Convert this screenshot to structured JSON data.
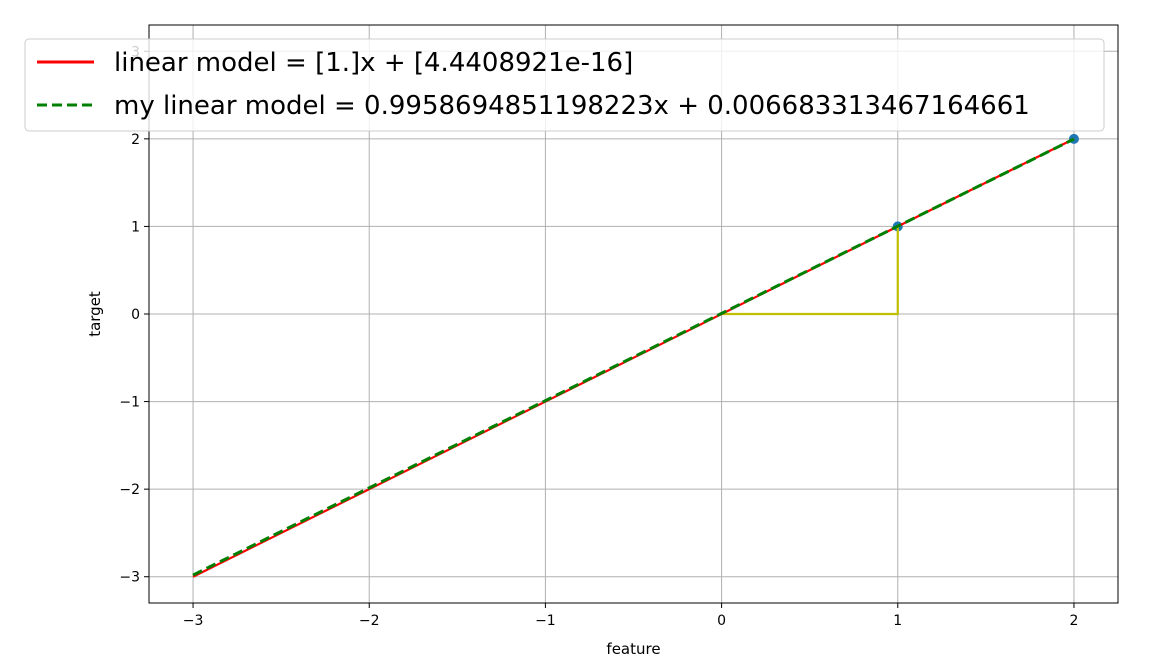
{
  "chart_data": {
    "type": "line",
    "title": "",
    "xlabel": "feature",
    "ylabel": "target",
    "xlim": [
      -3.25,
      2.25
    ],
    "ylim": [
      -3.3,
      3.3
    ],
    "xticks": [
      -3,
      -2,
      -1,
      0,
      1,
      2
    ],
    "yticks": [
      -3,
      -2,
      -1,
      0,
      1,
      2,
      3
    ],
    "xtick_labels": [
      "−3",
      "−2",
      "−1",
      "0",
      "1",
      "2"
    ],
    "ytick_labels": [
      "−3",
      "−2",
      "−1",
      "0",
      "1",
      "2",
      "3"
    ],
    "grid": true,
    "legend_position": "top",
    "series": [
      {
        "name": "linear model = [1.]x + [4.4408921e-16]",
        "kind": "line",
        "style": "solid",
        "color": "#ff0000",
        "x": [
          -3,
          2
        ],
        "y": [
          -3,
          2
        ]
      },
      {
        "name": "my linear model = 0.9958694851198223x + 0.006683313467164661",
        "kind": "line",
        "style": "dashed",
        "color": "#008000",
        "x": [
          -3,
          2
        ],
        "y": [
          -2.98093,
          1.99842
        ]
      },
      {
        "kind": "line",
        "style": "solid",
        "color": "#bfbf00",
        "x": [
          0,
          1,
          1
        ],
        "y": [
          0,
          0,
          1
        ]
      },
      {
        "kind": "scatter",
        "color": "#1f77b4",
        "x": [
          1,
          2
        ],
        "y": [
          1,
          2
        ]
      }
    ]
  }
}
